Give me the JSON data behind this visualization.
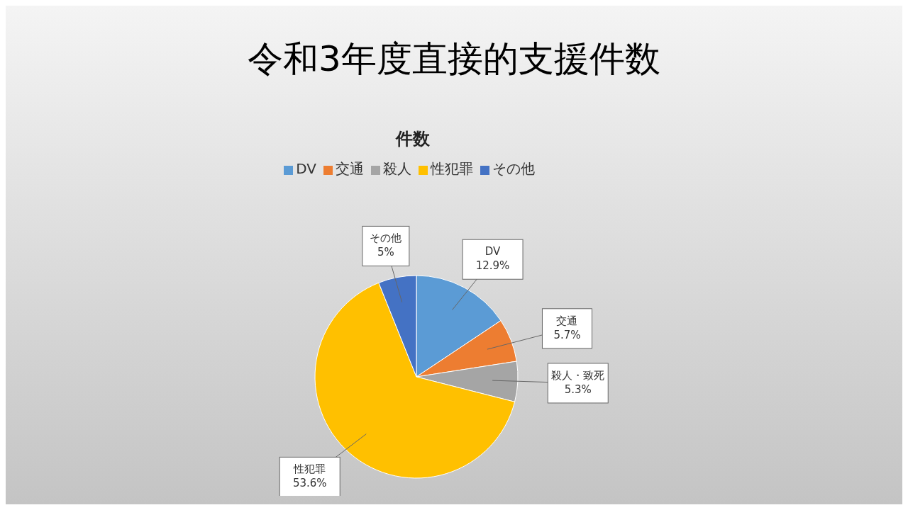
{
  "chart_data": {
    "type": "pie",
    "title": "令和3年度直接的支援件数",
    "subtitle": "件数",
    "categories": [
      "DV",
      "交通",
      "殺人",
      "性犯罪",
      "その他"
    ],
    "values": [
      12.9,
      5.7,
      5.3,
      53.6,
      5
    ],
    "colors": [
      "#5b9bd5",
      "#ed7d31",
      "#a5a5a5",
      "#ffc000",
      "#4472c4"
    ],
    "value_labels": [
      "DV\n12.9%",
      "交通\n5.7%",
      "殺人・致死\n5.3%",
      "性犯罪\n53.6%",
      "その他\n5%"
    ],
    "legend": "top"
  }
}
